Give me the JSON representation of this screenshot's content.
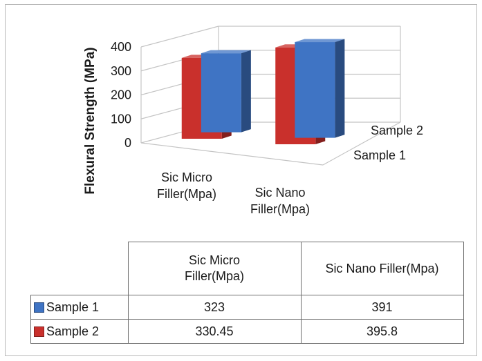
{
  "chart_data": {
    "type": "bar",
    "subtype": "3d-clustered-column-with-data-table",
    "title": "",
    "ylabel": "Flexural Strength (MPa)",
    "xlabel": "",
    "categories": [
      {
        "lines": [
          "Sic Micro",
          "Filler(Mpa)"
        ],
        "table_lines": [
          "Sic Micro",
          "Filler(Mpa)"
        ]
      },
      {
        "lines": [
          "Sic Nano",
          "Filler(Mpa)"
        ],
        "table_lines": [
          "Sic Nano Filler(Mpa)"
        ]
      }
    ],
    "series": [
      {
        "name": "Sample 1",
        "color": "#3f74c4",
        "values": [
          323,
          391
        ],
        "value_labels": [
          "323",
          "391"
        ]
      },
      {
        "name": "Sample 2",
        "color": "#c9302c",
        "values": [
          330.45,
          395.8
        ],
        "value_labels": [
          "330.45",
          "395.8"
        ]
      }
    ],
    "ylim": [
      0,
      400
    ],
    "yticks": [
      "0",
      "100",
      "200",
      "300",
      "400"
    ],
    "grid": true,
    "legend": "data-table"
  }
}
